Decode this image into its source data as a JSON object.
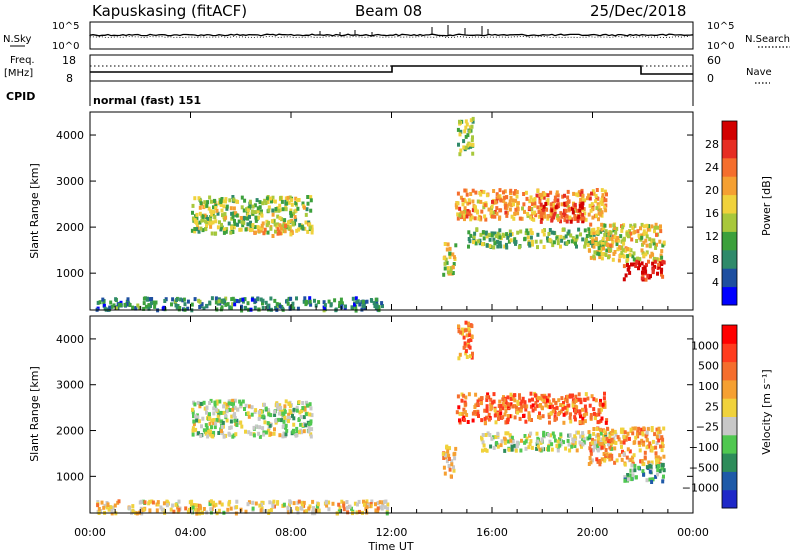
{
  "header": {
    "station": "Kapuskasing (fitACF)",
    "beam": "Beam 08",
    "date": "25/Dec/2018"
  },
  "top_panels": {
    "nsky_label": "N.Sky",
    "nsearch_label": "N.Search",
    "nsky_ticks": [
      "10^5",
      "10^0"
    ],
    "nsearch_ticks": [
      "10^5",
      "10^0"
    ],
    "freq_label_1": "Freq.",
    "freq_label_2": "[MHz]",
    "freq_ticks": [
      "18",
      "8"
    ],
    "nave_label": "Nave",
    "nave_ticks": [
      "60",
      "0"
    ],
    "cpid_label": "CPID",
    "cpid_value": "normal (fast) 151"
  },
  "colors": {
    "power": [
      "#0000ff",
      "#1e4fa0",
      "#2f8a6a",
      "#3ca03c",
      "#a8c83c",
      "#f0d23c",
      "#f5a032",
      "#f56e2d",
      "#e62d23",
      "#d20000"
    ],
    "velocity": [
      "#1e28c8",
      "#1e5aa8",
      "#2d8c5a",
      "#50c850",
      "#c8c8c8",
      "#f0d23c",
      "#f5a032",
      "#f56e2d",
      "#ff3c1e",
      "#ff0000"
    ]
  },
  "chart_data": [
    {
      "type": "heatmap",
      "panel": "power",
      "ylabel": "Slant Range [km]",
      "yticks": [
        1000,
        2000,
        3000,
        4000
      ],
      "ylim": [
        200,
        4500
      ],
      "xlim": [
        0,
        24
      ],
      "colorbar_label": "Power [dB]",
      "colorbar_ticks": [
        "28",
        "24",
        "20",
        "16",
        "12",
        "8",
        "4"
      ],
      "features": [
        {
          "t0": 0.2,
          "t1": 11.8,
          "r0": 230,
          "r1": 500,
          "level": 0.25
        },
        {
          "t0": 4.0,
          "t1": 8.8,
          "r0": 1900,
          "r1": 2700,
          "level": 0.45
        },
        {
          "t0": 6.4,
          "t1": 8.0,
          "r0": 1850,
          "r1": 2100,
          "level": 0.6
        },
        {
          "t0": 14.0,
          "t1": 14.5,
          "r0": 1000,
          "r1": 1700,
          "level": 0.5
        },
        {
          "t0": 14.6,
          "t1": 15.2,
          "r0": 3600,
          "r1": 4400,
          "level": 0.4
        },
        {
          "t0": 14.5,
          "t1": 20.5,
          "r0": 2200,
          "r1": 2850,
          "level": 0.65
        },
        {
          "t0": 17.8,
          "t1": 19.6,
          "r0": 2150,
          "r1": 2600,
          "level": 0.85
        },
        {
          "t0": 15.0,
          "t1": 20.8,
          "r0": 1600,
          "r1": 2000,
          "level": 0.4
        },
        {
          "t0": 19.8,
          "t1": 22.8,
          "r0": 1300,
          "r1": 2100,
          "level": 0.55
        },
        {
          "t0": 21.2,
          "t1": 22.8,
          "r0": 900,
          "r1": 1300,
          "level": 0.9
        }
      ]
    },
    {
      "type": "heatmap",
      "panel": "velocity",
      "ylabel": "Slant Range [km]",
      "yticks": [
        1000,
        2000,
        3000,
        4000
      ],
      "ylim": [
        200,
        4500
      ],
      "xlim": [
        0,
        24
      ],
      "xlabel": "Time UT",
      "xticks": [
        "00:00",
        "04:00",
        "08:00",
        "12:00",
        "16:00",
        "20:00",
        "00:00"
      ],
      "colorbar_label": "Velocity [m s⁻¹]",
      "colorbar_ticks": [
        "1000",
        "500",
        "100",
        "25",
        "−25",
        "−100",
        "−500",
        "−1000"
      ],
      "features": [
        {
          "t0": 0.2,
          "t1": 11.8,
          "r0": 230,
          "r1": 500,
          "level": 0.55
        },
        {
          "t0": 4.0,
          "t1": 8.8,
          "r0": 1900,
          "r1": 2700,
          "level": 0.45
        },
        {
          "t0": 14.0,
          "t1": 14.5,
          "r0": 1000,
          "r1": 1700,
          "level": 0.6
        },
        {
          "t0": 14.6,
          "t1": 15.2,
          "r0": 3600,
          "r1": 4400,
          "level": 0.7
        },
        {
          "t0": 14.5,
          "t1": 20.5,
          "r0": 2200,
          "r1": 2850,
          "level": 0.75
        },
        {
          "t0": 15.5,
          "t1": 20.8,
          "r0": 1600,
          "r1": 2000,
          "level": 0.45
        },
        {
          "t0": 19.8,
          "t1": 22.8,
          "r0": 1300,
          "r1": 2100,
          "level": 0.65
        },
        {
          "t0": 21.2,
          "t1": 22.8,
          "r0": 900,
          "r1": 1300,
          "level": 0.3
        }
      ]
    }
  ]
}
